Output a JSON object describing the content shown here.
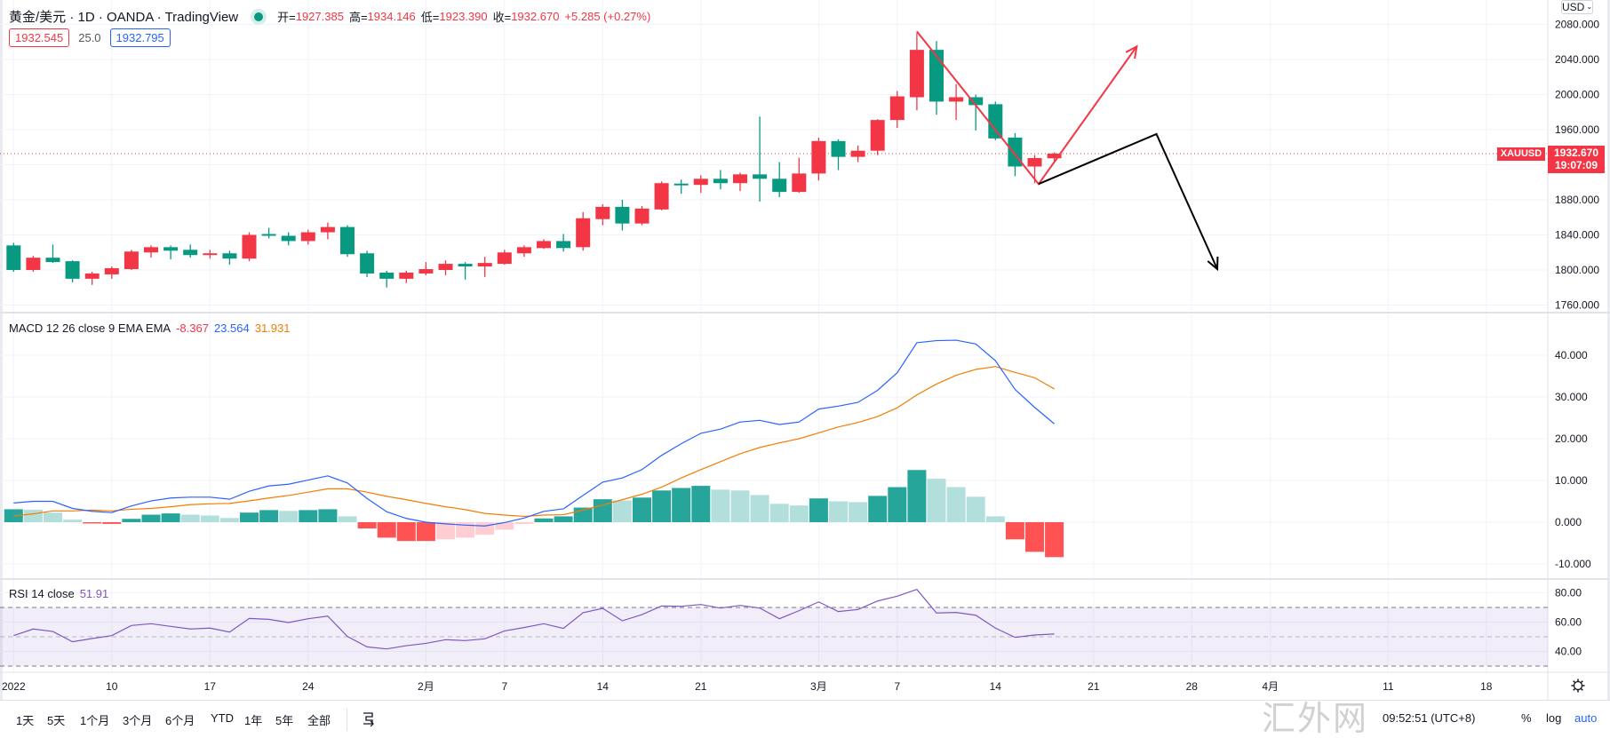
{
  "header": {
    "title": "黄金/美元 · 1D · OANDA · TradingView",
    "open_label": "开=",
    "open": "1927.385",
    "high_label": "高=",
    "high": "1934.146",
    "low_label": "低=",
    "low": "1923.390",
    "close_label": "收=",
    "close": "1932.670",
    "change": "+5.285 (+0.27%)",
    "bid": "1932.545",
    "spread": "25.0",
    "ask": "1932.795"
  },
  "price_axis": {
    "currency_button": "USD",
    "symbol_tag": "XAUUSD",
    "last_price": "1932.670",
    "countdown": "19:07:09",
    "labels": [
      "2080.000",
      "2040.000",
      "2000.000",
      "1960.000",
      "1880.000",
      "1840.000",
      "1800.000",
      "1760.000"
    ],
    "ticks": [
      2080,
      2040,
      2000,
      1960,
      1920,
      1880,
      1840,
      1800,
      1760
    ]
  },
  "macd": {
    "legend": "MACD 12 26 close 9 EMA EMA",
    "hist_value": "-8.367",
    "macd_value": "23.564",
    "signal_value": "31.931",
    "axis_labels": [
      "40.000",
      "30.000",
      "20.000",
      "10.000",
      "0.000",
      "-10.000"
    ],
    "ticks": [
      40,
      30,
      20,
      10,
      0,
      -10
    ]
  },
  "rsi": {
    "legend": "RSI 14 close",
    "value": "51.91",
    "axis_labels": [
      "80.00",
      "60.00",
      "40.00"
    ],
    "ticks": [
      80,
      60,
      40
    ],
    "upper_band": 70,
    "middle": 50,
    "lower_band": 30
  },
  "time_axis": [
    {
      "label": "2022",
      "bar": 0
    },
    {
      "label": "10",
      "bar": 5
    },
    {
      "label": "17",
      "bar": 10
    },
    {
      "label": "24",
      "bar": 15
    },
    {
      "label": "2月",
      "bar": 21
    },
    {
      "label": "7",
      "bar": 25
    },
    {
      "label": "14",
      "bar": 30
    },
    {
      "label": "21",
      "bar": 35
    },
    {
      "label": "3月",
      "bar": 41
    },
    {
      "label": "7",
      "bar": 45
    },
    {
      "label": "14",
      "bar": 50
    },
    {
      "label": "21",
      "bar": 55
    },
    {
      "label": "28",
      "bar": 60
    },
    {
      "label": "4月",
      "bar": 64
    },
    {
      "label": "11",
      "bar": 70
    },
    {
      "label": "18",
      "bar": 75
    }
  ],
  "toolbar": {
    "ranges": [
      "1天",
      "5天",
      "1个月",
      "3个月",
      "6个月",
      "YTD",
      "1年",
      "5年",
      "全部"
    ],
    "clock": "09:52:51 (UTC+8)",
    "percent": "%",
    "log": "log",
    "auto": "auto"
  },
  "watermark": "汇外网",
  "colors": {
    "up": "#f23645",
    "down": "#089981",
    "macd": "#2962ff",
    "signal": "#f57c00",
    "rsi": "#7e57c2",
    "hist_up_strong": "#26a69a",
    "hist_up_weak": "#b2dfdb",
    "hist_down_strong": "#ff5252",
    "hist_down_weak": "#ffcdd2"
  },
  "chart_data": {
    "type": "candlestick",
    "symbol": "XAUUSD",
    "interval": "1D",
    "ylim": [
      1750,
      2090
    ],
    "ohlc": [
      [
        1828,
        1831,
        1798,
        1800
      ],
      [
        1800,
        1816,
        1798,
        1814
      ],
      [
        1814,
        1829,
        1808,
        1809
      ],
      [
        1810,
        1811,
        1786,
        1790
      ],
      [
        1790,
        1798,
        1783,
        1796
      ],
      [
        1795,
        1804,
        1790,
        1802
      ],
      [
        1801,
        1823,
        1800,
        1821
      ],
      [
        1820,
        1828,
        1814,
        1826
      ],
      [
        1826,
        1828,
        1812,
        1822
      ],
      [
        1823,
        1829,
        1814,
        1817
      ],
      [
        1817,
        1823,
        1813,
        1819
      ],
      [
        1819,
        1822,
        1806,
        1813
      ],
      [
        1813,
        1843,
        1810,
        1840
      ],
      [
        1841,
        1848,
        1836,
        1839
      ],
      [
        1839,
        1843,
        1828,
        1833
      ],
      [
        1833,
        1846,
        1829,
        1843
      ],
      [
        1843,
        1854,
        1835,
        1849
      ],
      [
        1849,
        1851,
        1815,
        1818
      ],
      [
        1819,
        1822,
        1792,
        1796
      ],
      [
        1797,
        1799,
        1780,
        1790
      ],
      [
        1790,
        1799,
        1785,
        1797
      ],
      [
        1796,
        1809,
        1794,
        1801
      ],
      [
        1800,
        1811,
        1794,
        1807
      ],
      [
        1807,
        1809,
        1789,
        1804
      ],
      [
        1804,
        1815,
        1792,
        1808
      ],
      [
        1807,
        1823,
        1806,
        1820
      ],
      [
        1819,
        1828,
        1815,
        1826
      ],
      [
        1825,
        1835,
        1824,
        1833
      ],
      [
        1833,
        1841,
        1821,
        1825
      ],
      [
        1826,
        1866,
        1822,
        1859
      ],
      [
        1858,
        1875,
        1851,
        1872
      ],
      [
        1872,
        1880,
        1845,
        1853
      ],
      [
        1853,
        1873,
        1851,
        1870
      ],
      [
        1869,
        1901,
        1868,
        1899
      ],
      [
        1898.5,
        1903,
        1887,
        1896.5
      ],
      [
        1897,
        1908,
        1888,
        1904
      ],
      [
        1904,
        1914,
        1892,
        1899
      ],
      [
        1899,
        1911,
        1890,
        1909
      ],
      [
        1909,
        1975,
        1878,
        1904
      ],
      [
        1904,
        1923,
        1883,
        1889
      ],
      [
        1889,
        1928,
        1888,
        1910
      ],
      [
        1910,
        1951,
        1902,
        1947
      ],
      [
        1947,
        1949,
        1914,
        1929
      ],
      [
        1929,
        1942,
        1923,
        1936
      ],
      [
        1936,
        1972,
        1931,
        1971
      ],
      [
        1971,
        2004,
        1962,
        1998
      ],
      [
        1997,
        2070,
        1982,
        2051
      ],
      [
        2051,
        2061,
        1977,
        1992
      ],
      [
        1992,
        2012,
        1971,
        1997
      ],
      [
        1997,
        2000,
        1959,
        1988
      ],
      [
        1989,
        1992,
        1948,
        1950
      ],
      [
        1951,
        1956,
        1907,
        1918
      ],
      [
        1918,
        1931,
        1899,
        1927.6
      ],
      [
        1927.385,
        1934.146,
        1923.39,
        1932.67
      ]
    ],
    "macd": [
      4.6,
      5.0,
      5.0,
      3.3,
      2.6,
      2.3,
      3.9,
      5.1,
      5.8,
      6.0,
      6.0,
      5.5,
      7.4,
      8.7,
      9.1,
      10.1,
      11.1,
      9.4,
      5.7,
      2.5,
      0.9,
      0,
      -0.4,
      -0.7,
      -0.9,
      -0.1,
      1.0,
      2.6,
      3.2,
      6.4,
      9.6,
      10.6,
      12.6,
      16.0,
      18.8,
      21.3,
      22.3,
      24.0,
      24.4,
      23.4,
      24.0,
      27.1,
      27.8,
      28.7,
      31.6,
      35.8,
      43.0,
      43.5,
      43.6,
      42.7,
      38.7,
      31.8,
      27.5,
      23.564
    ],
    "signal": [
      1.5,
      2.0,
      2.7,
      2.7,
      2.9,
      2.7,
      3.1,
      3.3,
      3.7,
      4.2,
      4.4,
      4.5,
      5.1,
      5.8,
      6.4,
      7.2,
      8.0,
      8.0,
      7.2,
      6.2,
      5.4,
      4.5,
      3.7,
      3.0,
      2.1,
      1.7,
      1.4,
      1.7,
      1.8,
      2.9,
      4.1,
      5.4,
      6.7,
      8.4,
      10.6,
      12.6,
      14.5,
      16.4,
      17.9,
      19.0,
      20.0,
      21.4,
      22.8,
      23.9,
      25.3,
      27.4,
      30.5,
      33.1,
      35.2,
      36.6,
      37.3,
      35.9,
      34.6,
      31.931
    ],
    "histogram": [
      3.1,
      3.0,
      2.3,
      0.6,
      -0.3,
      -0.4,
      0.8,
      1.8,
      2.1,
      1.8,
      1.6,
      1.0,
      2.3,
      2.9,
      2.7,
      2.9,
      3.1,
      1.4,
      -1.5,
      -3.7,
      -4.5,
      -4.5,
      -4.1,
      -3.7,
      -3.0,
      -1.8,
      -0.4,
      0.9,
      1.4,
      3.5,
      5.5,
      5.2,
      5.9,
      7.6,
      8.2,
      8.7,
      7.8,
      7.6,
      6.5,
      4.4,
      4.0,
      5.7,
      5.0,
      4.8,
      6.3,
      8.4,
      12.5,
      10.4,
      8.4,
      6.1,
      1.4,
      -4.1,
      -7.1,
      -8.367
    ],
    "rsi": [
      50.8,
      55.3,
      53.6,
      46.6,
      48.8,
      50.8,
      57.7,
      58.9,
      57.1,
      55.3,
      55.9,
      53.2,
      62.5,
      61.9,
      59.7,
      62.3,
      64.1,
      50.2,
      43.1,
      41.7,
      43.9,
      45.5,
      48.0,
      47.4,
      48.6,
      54.0,
      56.3,
      58.9,
      55.7,
      66.4,
      69.4,
      60.9,
      65.1,
      71.0,
      70.8,
      72.0,
      69.6,
      71.4,
      69.6,
      62.3,
      67.8,
      73.8,
      67.2,
      68.6,
      74.4,
      77.7,
      82.3,
      66.2,
      66.6,
      64.7,
      55.9,
      49.6,
      51.2,
      51.91
    ],
    "drawings": [
      {
        "name": "red-bullish-path",
        "color": "#f23645",
        "points": [
          [
            46,
            2072
          ],
          [
            52.2,
            1898
          ],
          [
            57.2,
            2055
          ]
        ],
        "arrow": true
      },
      {
        "name": "black-bearish-path",
        "color": "#000000",
        "points": [
          [
            52.2,
            1898
          ],
          [
            58.2,
            1955
          ],
          [
            61.3,
            1801
          ]
        ],
        "arrow": true
      }
    ]
  }
}
